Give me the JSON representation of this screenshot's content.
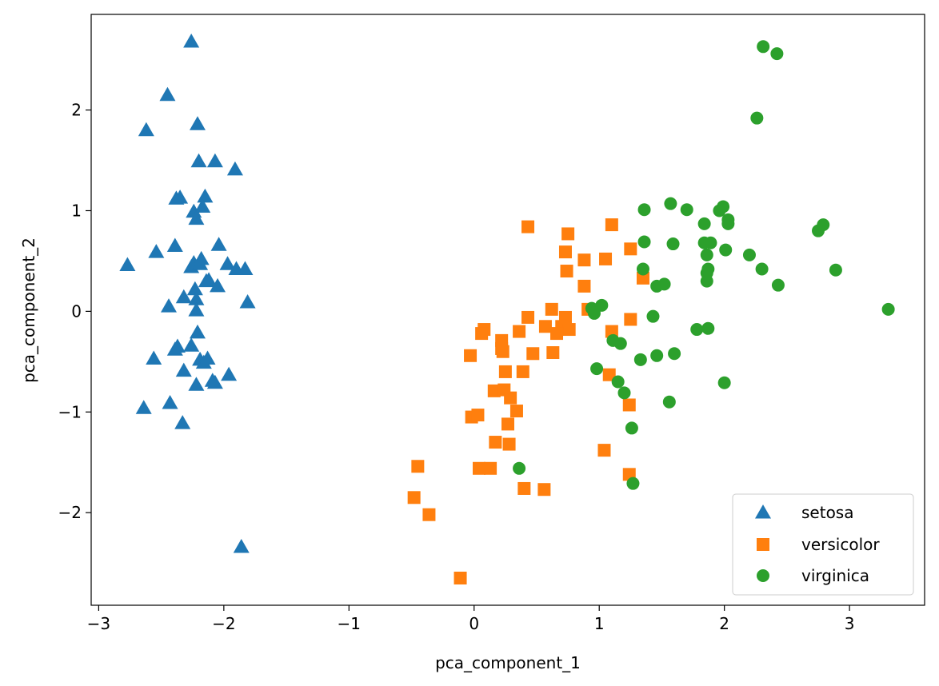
{
  "chart_data": {
    "type": "scatter",
    "title": "",
    "xlabel": "pca_component_1",
    "ylabel": "pca_component_2",
    "xlim": [
      -3.06,
      3.6
    ],
    "ylim": [
      -2.92,
      2.95
    ],
    "xticks": [
      -3,
      -2,
      -1,
      0,
      1,
      2,
      3
    ],
    "yticks": [
      -2,
      -1,
      0,
      1,
      2
    ],
    "xtick_labels": [
      "−3",
      "−2",
      "−1",
      "0",
      "1",
      "2",
      "3"
    ],
    "ytick_labels": [
      "−2",
      "−1",
      "0",
      "1",
      "2"
    ],
    "grid": false,
    "legend_position": "bottom-right",
    "series": [
      {
        "name": "setosa",
        "marker": "triangle",
        "color": "#1f77b4",
        "points": [
          [
            -2.26,
            2.68
          ],
          [
            -2.45,
            2.15
          ],
          [
            -2.62,
            1.8
          ],
          [
            -2.21,
            1.86
          ],
          [
            -2.2,
            1.49
          ],
          [
            -2.07,
            1.49
          ],
          [
            -1.91,
            1.41
          ],
          [
            -2.38,
            1.12
          ],
          [
            -2.35,
            1.13
          ],
          [
            -2.15,
            1.14
          ],
          [
            -2.24,
            0.99
          ],
          [
            -2.17,
            1.04
          ],
          [
            -2.22,
            0.92
          ],
          [
            -2.77,
            0.46
          ],
          [
            -2.54,
            0.59
          ],
          [
            -2.39,
            0.65
          ],
          [
            -2.04,
            0.66
          ],
          [
            -2.26,
            0.44
          ],
          [
            -2.24,
            0.48
          ],
          [
            -2.19,
            0.47
          ],
          [
            -2.18,
            0.52
          ],
          [
            -1.97,
            0.47
          ],
          [
            -1.9,
            0.42
          ],
          [
            -1.83,
            0.42
          ],
          [
            -2.23,
            0.22
          ],
          [
            -2.14,
            0.3
          ],
          [
            -2.12,
            0.31
          ],
          [
            -2.05,
            0.25
          ],
          [
            -2.32,
            0.14
          ],
          [
            -2.22,
            0.12
          ],
          [
            -1.81,
            0.09
          ],
          [
            -2.44,
            0.05
          ],
          [
            -2.22,
            0.01
          ],
          [
            -2.21,
            -0.21
          ],
          [
            -2.37,
            -0.35
          ],
          [
            -2.26,
            -0.34
          ],
          [
            -2.39,
            -0.38
          ],
          [
            -2.56,
            -0.47
          ],
          [
            -2.19,
            -0.48
          ],
          [
            -2.16,
            -0.51
          ],
          [
            -2.13,
            -0.47
          ],
          [
            -2.32,
            -0.59
          ],
          [
            -1.96,
            -0.63
          ],
          [
            -2.09,
            -0.69
          ],
          [
            -2.07,
            -0.71
          ],
          [
            -2.22,
            -0.73
          ],
          [
            -2.43,
            -0.91
          ],
          [
            -2.64,
            -0.96
          ],
          [
            -2.33,
            -1.11
          ],
          [
            -1.86,
            -2.34
          ]
        ]
      },
      {
        "name": "versicolor",
        "marker": "square",
        "color": "#ff7f0e",
        "points": [
          [
            1.1,
            0.86
          ],
          [
            0.43,
            0.84
          ],
          [
            0.75,
            0.77
          ],
          [
            0.73,
            0.59
          ],
          [
            1.25,
            0.62
          ],
          [
            0.88,
            0.51
          ],
          [
            1.05,
            0.52
          ],
          [
            0.74,
            0.4
          ],
          [
            1.35,
            0.33
          ],
          [
            0.88,
            0.25
          ],
          [
            0.62,
            0.02
          ],
          [
            0.91,
            0.02
          ],
          [
            0.73,
            -0.06
          ],
          [
            0.43,
            -0.06
          ],
          [
            0.08,
            -0.18
          ],
          [
            0.06,
            -0.22
          ],
          [
            0.36,
            -0.2
          ],
          [
            0.57,
            -0.15
          ],
          [
            0.7,
            -0.15
          ],
          [
            0.76,
            -0.18
          ],
          [
            0.66,
            -0.22
          ],
          [
            1.1,
            -0.2
          ],
          [
            1.25,
            -0.08
          ],
          [
            0.22,
            -0.29
          ],
          [
            0.22,
            -0.37
          ],
          [
            0.23,
            -0.4
          ],
          [
            -0.03,
            -0.44
          ],
          [
            0.47,
            -0.42
          ],
          [
            0.63,
            -0.41
          ],
          [
            0.25,
            -0.6
          ],
          [
            0.39,
            -0.6
          ],
          [
            1.08,
            -0.63
          ],
          [
            0.16,
            -0.79
          ],
          [
            0.24,
            -0.78
          ],
          [
            0.29,
            -0.86
          ],
          [
            0.34,
            -0.99
          ],
          [
            0.27,
            -1.12
          ],
          [
            1.24,
            -0.93
          ],
          [
            -0.02,
            -1.05
          ],
          [
            0.03,
            -1.03
          ],
          [
            0.17,
            -1.3
          ],
          [
            0.28,
            -1.32
          ],
          [
            1.04,
            -1.38
          ],
          [
            0.04,
            -1.56
          ],
          [
            0.13,
            -1.56
          ],
          [
            -0.45,
            -1.54
          ],
          [
            1.24,
            -1.62
          ],
          [
            0.4,
            -1.76
          ],
          [
            0.56,
            -1.77
          ],
          [
            -0.48,
            -1.85
          ],
          [
            -0.36,
            -2.02
          ],
          [
            -0.11,
            -2.65
          ]
        ]
      },
      {
        "name": "virginica",
        "marker": "circle",
        "color": "#2ca02c",
        "points": [
          [
            2.31,
            2.63
          ],
          [
            2.42,
            2.56
          ],
          [
            2.26,
            1.92
          ],
          [
            1.57,
            1.07
          ],
          [
            1.36,
            1.01
          ],
          [
            1.7,
            1.01
          ],
          [
            1.99,
            1.04
          ],
          [
            1.96,
            1.0
          ],
          [
            2.03,
            0.91
          ],
          [
            2.03,
            0.87
          ],
          [
            1.84,
            0.87
          ],
          [
            2.79,
            0.86
          ],
          [
            2.75,
            0.8
          ],
          [
            1.36,
            0.69
          ],
          [
            1.59,
            0.67
          ],
          [
            1.84,
            0.68
          ],
          [
            1.89,
            0.68
          ],
          [
            2.01,
            0.61
          ],
          [
            2.2,
            0.56
          ],
          [
            1.86,
            0.56
          ],
          [
            1.35,
            0.42
          ],
          [
            1.87,
            0.42
          ],
          [
            2.3,
            0.42
          ],
          [
            2.89,
            0.41
          ],
          [
            1.86,
            0.38
          ],
          [
            1.86,
            0.3
          ],
          [
            1.46,
            0.25
          ],
          [
            1.52,
            0.27
          ],
          [
            2.43,
            0.26
          ],
          [
            3.31,
            0.02
          ],
          [
            0.94,
            0.03
          ],
          [
            1.02,
            0.06
          ],
          [
            0.96,
            -0.02
          ],
          [
            1.43,
            -0.05
          ],
          [
            1.78,
            -0.18
          ],
          [
            1.87,
            -0.17
          ],
          [
            1.11,
            -0.29
          ],
          [
            1.17,
            -0.32
          ],
          [
            1.46,
            -0.44
          ],
          [
            1.6,
            -0.42
          ],
          [
            1.33,
            -0.48
          ],
          [
            0.98,
            -0.57
          ],
          [
            1.15,
            -0.7
          ],
          [
            2.0,
            -0.71
          ],
          [
            1.2,
            -0.81
          ],
          [
            1.56,
            -0.9
          ],
          [
            1.26,
            -1.16
          ],
          [
            0.36,
            -1.56
          ],
          [
            1.27,
            -1.71
          ]
        ]
      }
    ]
  }
}
